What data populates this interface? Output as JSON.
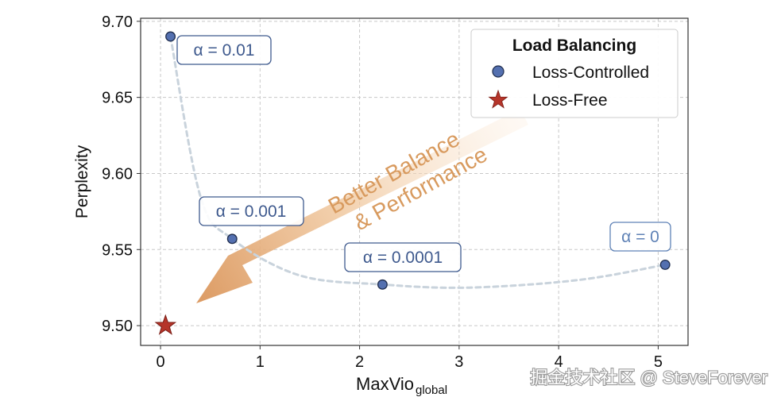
{
  "chart_data": {
    "type": "scatter",
    "xlabel": "MaxVio",
    "xlabel_sub": "global",
    "ylabel": "Perplexity",
    "xlim": [
      -0.2,
      5.3
    ],
    "ylim": [
      9.487,
      9.702
    ],
    "x_ticks": [
      0,
      1,
      2,
      3,
      4,
      5
    ],
    "x_tick_labels": [
      "0",
      "1",
      "2",
      "3",
      "4",
      "5"
    ],
    "y_ticks": [
      9.5,
      9.55,
      9.6,
      9.65,
      9.7
    ],
    "y_tick_labels": [
      "9.50",
      "9.55",
      "9.60",
      "9.65",
      "9.70"
    ],
    "grid": true,
    "series": [
      {
        "name": "Loss-Controlled",
        "marker": "circle",
        "color": "#5470b0",
        "points": [
          {
            "x": 0.1,
            "y": 9.69,
            "label": "α = 0.01"
          },
          {
            "x": 0.72,
            "y": 9.557,
            "label": "α = 0.001"
          },
          {
            "x": 2.23,
            "y": 9.527,
            "label": "α = 0.0001"
          },
          {
            "x": 5.07,
            "y": 9.54,
            "label": "α = 0"
          }
        ]
      },
      {
        "name": "Loss-Free",
        "marker": "star",
        "color": "#b5352a",
        "points": [
          {
            "x": 0.05,
            "y": 9.5
          }
        ]
      }
    ],
    "trend_curve": [
      {
        "x": 0.1,
        "y": 9.69
      },
      {
        "x": 0.4,
        "y": 9.585
      },
      {
        "x": 0.72,
        "y": 9.557
      },
      {
        "x": 1.4,
        "y": 9.533
      },
      {
        "x": 2.23,
        "y": 9.527
      },
      {
        "x": 3.1,
        "y": 9.525
      },
      {
        "x": 4.2,
        "y": 9.53
      },
      {
        "x": 5.07,
        "y": 9.54
      }
    ],
    "legend": {
      "title": "Load Balancing",
      "position": "top-right",
      "entries": [
        "Loss-Controlled",
        "Loss-Free"
      ]
    },
    "annotation": {
      "line1": "Better Balance",
      "line2": "&  Performance",
      "color": "#d89a5e"
    }
  },
  "watermark": "掘金技术社区 @ SteveForever"
}
